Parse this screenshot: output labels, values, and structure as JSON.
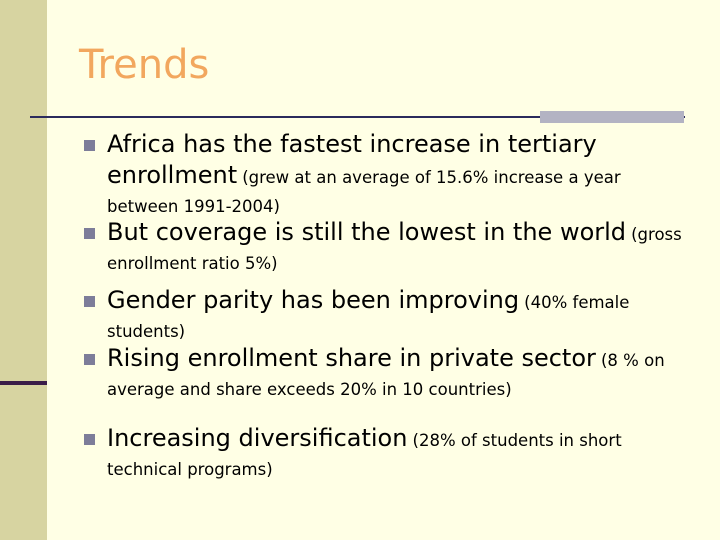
{
  "title": "Trends",
  "bullets": [
    {
      "main": "Africa has the fastest increase in tertiary enrollment",
      "note": "(grew at an average of 15.6% increase a year between 1991-2004)"
    },
    {
      "main": "But coverage is still the lowest in the world",
      "note": "(gross enrollment ratio 5%)"
    },
    {
      "main": "Gender parity has been improving",
      "note": "(40% female students)"
    },
    {
      "main": "Rising enrollment share in private sector",
      "note": "(8 % on average and share exceeds 20% in 10 countries)"
    },
    {
      "main": "Increasing diversification",
      "note": "(28% of students in short technical programs)"
    }
  ]
}
